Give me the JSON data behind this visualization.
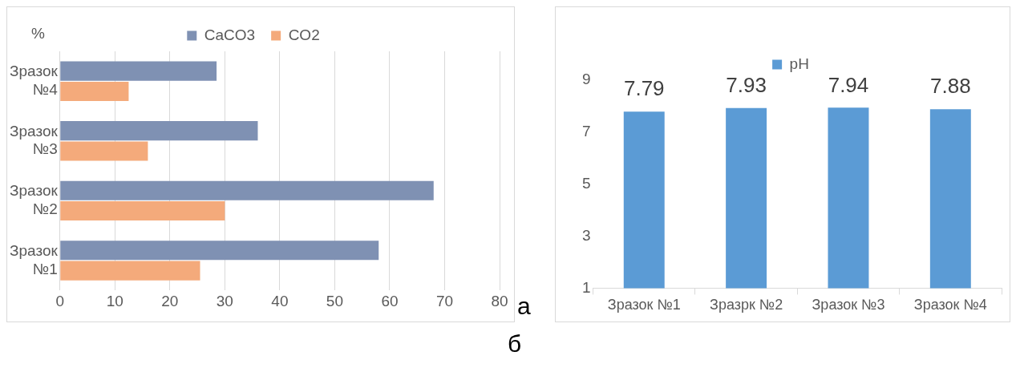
{
  "chart_data": [
    {
      "type": "bar",
      "orientation": "horizontal",
      "ylabel": "%",
      "categories": [
        "Зразок №4",
        "Зразок №3",
        "Зразок №2",
        "Зразок №1"
      ],
      "series": [
        {
          "name": "CaCO3",
          "color": "#7f91b3",
          "values": [
            28.5,
            36,
            68,
            58
          ]
        },
        {
          "name": "CO2",
          "color": "#f4aa7b",
          "values": [
            12.5,
            16,
            30,
            25.5
          ]
        }
      ],
      "xlim": [
        0,
        80
      ],
      "xticks": [
        0,
        10,
        20,
        30,
        40,
        50,
        60,
        70,
        80
      ],
      "grid": "x",
      "legend": "top",
      "annotations": [
        "а"
      ]
    },
    {
      "type": "bar",
      "categories": [
        "Зразок №1",
        "Зразрк №2",
        "Зразок №3",
        "Зразок №4"
      ],
      "series": [
        {
          "name": "pH",
          "color": "#5b9bd5",
          "values": [
            7.79,
            7.93,
            7.94,
            7.88
          ]
        }
      ],
      "ylim": [
        1,
        9
      ],
      "yticks": [
        1,
        3,
        5,
        7,
        9
      ],
      "data_labels": true,
      "legend": "top",
      "annotations": [
        "б"
      ]
    }
  ]
}
